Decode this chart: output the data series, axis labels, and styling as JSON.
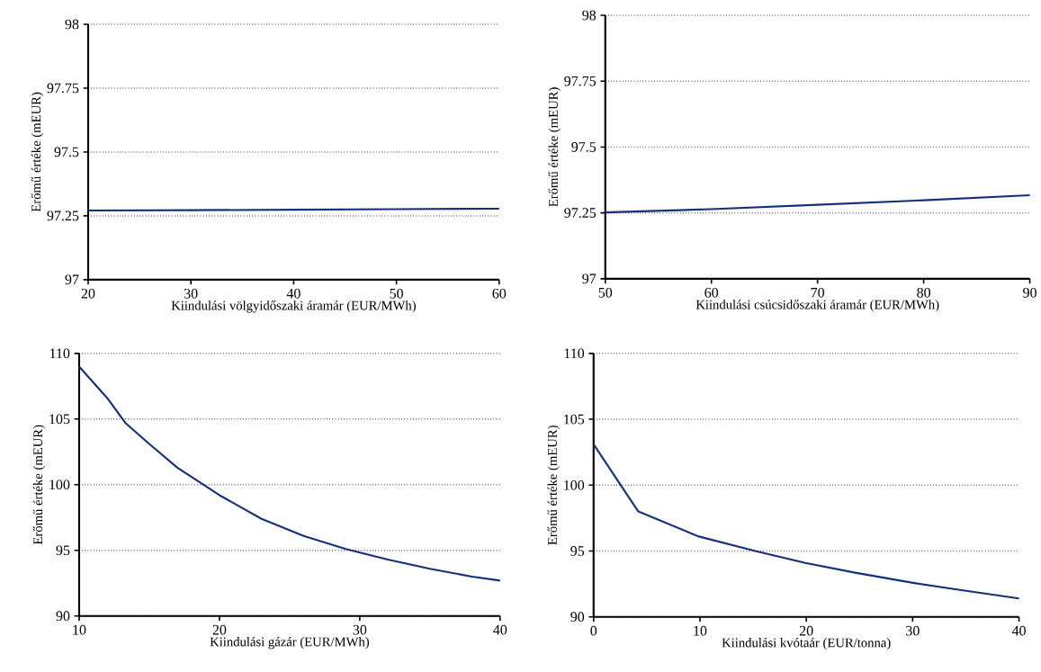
{
  "chart_data": [
    {
      "type": "line",
      "xlabel": "Kiindulási völgyidőszaki áramár (EUR/MWh)",
      "ylabel": "Erőmű értéke (mEUR)",
      "color": "#15307a",
      "grid": "y",
      "x": [
        20,
        30,
        40,
        50,
        60
      ],
      "values": [
        97.271,
        97.272,
        97.274,
        97.276,
        97.278
      ],
      "xlim": [
        20,
        60
      ],
      "ylim": [
        97,
        98
      ],
      "xticks": [
        20,
        30,
        40,
        50,
        60
      ],
      "yticks": [
        97,
        97.25,
        97.5,
        97.75,
        98
      ]
    },
    {
      "type": "line",
      "xlabel": "Kiindulási csúcsidőszaki áramár (EUR/MWh)",
      "ylabel": "Erőmű értéke (mEUR)",
      "color": "#15307a",
      "grid": "y",
      "x": [
        50,
        60,
        70,
        80,
        90
      ],
      "values": [
        97.252,
        97.264,
        97.281,
        97.298,
        97.317
      ],
      "xlim": [
        50,
        90
      ],
      "ylim": [
        97,
        98
      ],
      "xticks": [
        50,
        60,
        70,
        80,
        90
      ],
      "yticks": [
        97,
        97.25,
        97.5,
        97.75,
        98
      ]
    },
    {
      "type": "line",
      "xlabel": "Kiindulási gázár (EUR/MWh)",
      "ylabel": "Erőmű értéke (mEUR)",
      "color": "#15307a",
      "grid": "y",
      "x": [
        10,
        12,
        13.3,
        15,
        17,
        20,
        23,
        26,
        29,
        32,
        35,
        38,
        40
      ],
      "values": [
        109,
        106.6,
        104.7,
        103.1,
        101.3,
        99.2,
        97.4,
        96.1,
        95.1,
        94.3,
        93.6,
        93.0,
        92.7
      ],
      "xlim": [
        10,
        40
      ],
      "ylim": [
        90,
        110
      ],
      "xticks": [
        10,
        20,
        30,
        40
      ],
      "yticks": [
        90,
        95,
        100,
        105,
        110
      ]
    },
    {
      "type": "line",
      "xlabel": "Kiindulási kvótaár (EUR/tonna)",
      "ylabel": "Erőmű értéke (mEUR)",
      "color": "#15307a",
      "grid": "y",
      "x": [
        0,
        4.2,
        9.9,
        15.2,
        19.9,
        24.6,
        29.9,
        34,
        40
      ],
      "values": [
        103.1,
        98,
        96.1,
        95,
        94.1,
        93.35,
        92.6,
        92.1,
        91.4
      ],
      "xlim": [
        0,
        40
      ],
      "ylim": [
        90,
        110
      ],
      "xticks": [
        0,
        10,
        20,
        30,
        40
      ],
      "yticks": [
        90,
        95,
        100,
        105,
        110
      ]
    }
  ]
}
